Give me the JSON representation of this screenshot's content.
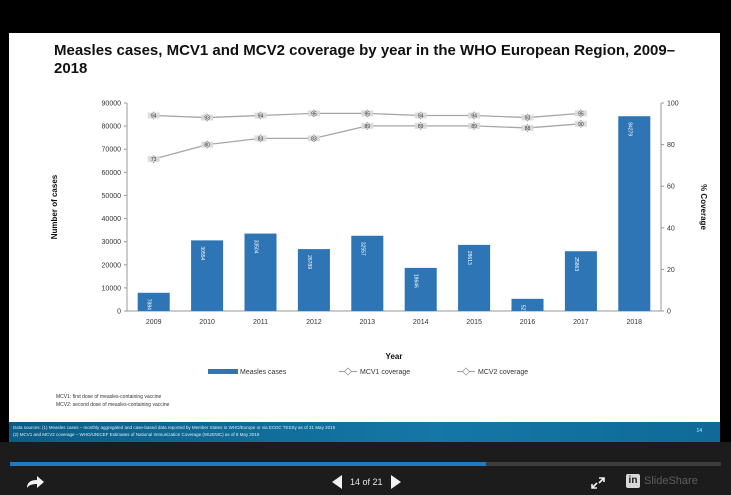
{
  "chart_data": {
    "type": "bar",
    "title": "Measles cases, MCV1 and MCV2 coverage by year in the WHO European Region, 2009–2018",
    "xlabel": "Year",
    "ylabel": "Number of cases",
    "y2label": "% Coverage",
    "categories": [
      "2009",
      "2010",
      "2011",
      "2012",
      "2013",
      "2014",
      "2015",
      "2016",
      "2017",
      "2018"
    ],
    "ylim": [
      0,
      90000
    ],
    "y2lim": [
      0,
      100
    ],
    "yticks": [
      "0",
      "10000",
      "20000",
      "30000",
      "40000",
      "50000",
      "60000",
      "70000",
      "80000",
      "90000"
    ],
    "y2ticks": [
      "0",
      "20",
      "40",
      "60",
      "80",
      "100"
    ],
    "bar_series": {
      "name": "Measles cases",
      "values": [
        7884,
        30554,
        33504,
        26789,
        32557,
        18646,
        28613,
        5273,
        25863,
        84279
      ]
    },
    "line_series": [
      {
        "name": "MCV1 coverage",
        "values": [
          94,
          93,
          94,
          95,
          95,
          94,
          94,
          93,
          95,
          null
        ]
      },
      {
        "name": "MCV2 coverage",
        "values": [
          73,
          80,
          83,
          83,
          89,
          89,
          89,
          88,
          90,
          null
        ]
      }
    ],
    "legend_position": "bottom",
    "grid": false,
    "colors": {
      "bars": "#2e75b6",
      "lines": "#a6a6a6",
      "text": "#111111"
    }
  },
  "notes": [
    "MCV1: first dose of measles-containing vaccine",
    "MCV2: second dose of measles-containing vaccine"
  ],
  "footer": {
    "lines": [
      "Data sources: (1) Measles cases – monthly aggregated and case-based data reported by Member States to WHO/Europe or via ECDC TESSy as of 31 May 2019",
      "(2) MCV1 and MCV2 coverage – WHO/UNICEF Estimates of National Immunization Coverage (WUENIC) as of 8 May 2019"
    ],
    "page_tag": "14"
  },
  "player": {
    "page_counter": "14 of 21",
    "brand": "SlideShare",
    "brand_badge": "in",
    "progress": 0.67,
    "icons": [
      "share-icon",
      "prev-slide-icon",
      "next-slide-icon",
      "fullscreen-icon",
      "linkedin-icon"
    ]
  }
}
